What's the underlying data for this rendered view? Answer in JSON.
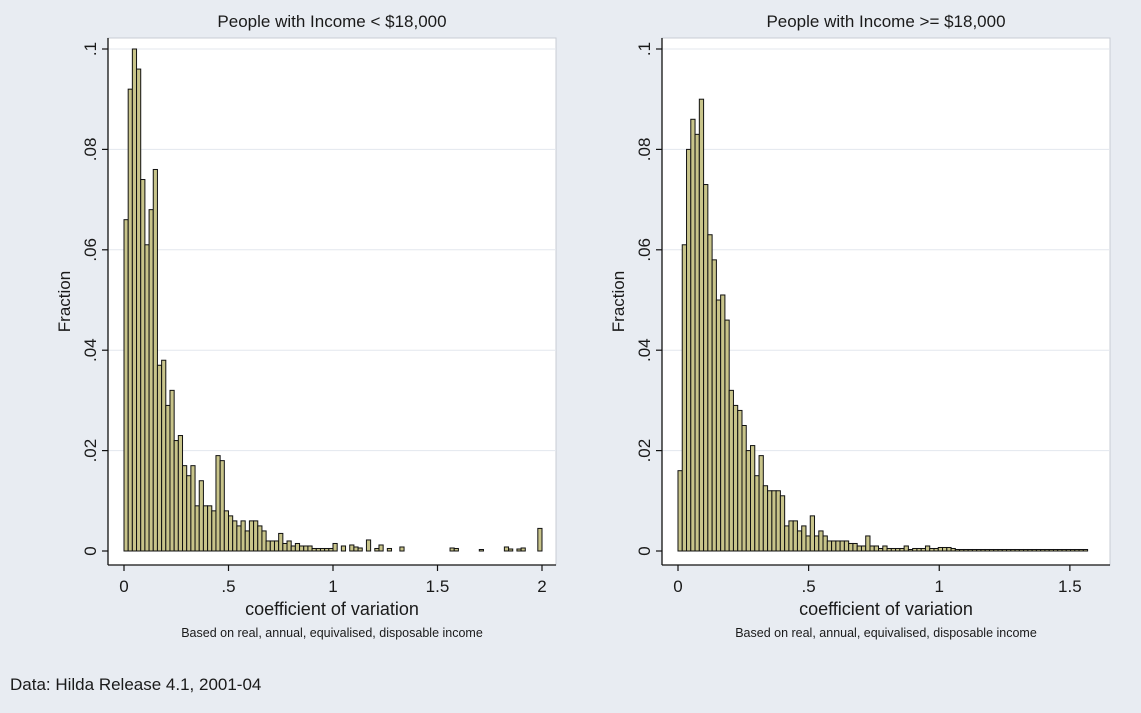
{
  "note": "Data: Hilda Release 4.1, 2001-04",
  "colors": {
    "bar_fill": "#c8c48a",
    "bar_stroke": "#111111",
    "plot_bg": "#ffffff",
    "page_bg": "#e8ecf2",
    "grid": "#e3e7ee"
  },
  "chart_data": [
    {
      "type": "bar",
      "title": "People with Income < $18,000",
      "xlabel": "coefficient of variation",
      "subtitle": "Based on real, annual, equivalised, disposable income",
      "ylabel": "Fraction",
      "xlim": [
        0,
        2
      ],
      "ylim": [
        0,
        0.1
      ],
      "xticks": [
        0,
        0.5,
        1,
        1.5,
        2
      ],
      "xtick_labels": [
        "0",
        ".5",
        "1",
        "1.5",
        "2"
      ],
      "yticks": [
        0,
        0.02,
        0.04,
        0.06,
        0.08,
        0.1
      ],
      "ytick_labels": [
        "0",
        ".02",
        ".04",
        ".06",
        ".08",
        ".1"
      ],
      "grid": true,
      "bin_width": 0.02,
      "x": [
        0.01,
        0.03,
        0.05,
        0.07,
        0.09,
        0.11,
        0.13,
        0.15,
        0.17,
        0.19,
        0.21,
        0.23,
        0.25,
        0.27,
        0.29,
        0.31,
        0.33,
        0.35,
        0.37,
        0.39,
        0.41,
        0.43,
        0.45,
        0.47,
        0.49,
        0.51,
        0.53,
        0.55,
        0.57,
        0.59,
        0.61,
        0.63,
        0.65,
        0.67,
        0.69,
        0.71,
        0.73,
        0.75,
        0.77,
        0.79,
        0.81,
        0.83,
        0.85,
        0.87,
        0.89,
        0.91,
        0.93,
        0.95,
        0.97,
        0.99,
        1.01,
        1.05,
        1.09,
        1.11,
        1.13,
        1.17,
        1.21,
        1.23,
        1.27,
        1.33,
        1.57,
        1.59,
        1.71,
        1.83,
        1.85,
        1.89,
        1.91,
        1.99
      ],
      "values": [
        0.066,
        0.092,
        0.1,
        0.096,
        0.074,
        0.061,
        0.068,
        0.076,
        0.037,
        0.038,
        0.029,
        0.032,
        0.022,
        0.023,
        0.017,
        0.015,
        0.017,
        0.009,
        0.014,
        0.009,
        0.009,
        0.008,
        0.019,
        0.018,
        0.008,
        0.007,
        0.006,
        0.005,
        0.006,
        0.004,
        0.006,
        0.006,
        0.005,
        0.004,
        0.002,
        0.002,
        0.002,
        0.0035,
        0.0015,
        0.002,
        0.001,
        0.0015,
        0.001,
        0.001,
        0.001,
        0.0005,
        0.0005,
        0.0005,
        0.0005,
        0.0005,
        0.0015,
        0.001,
        0.0012,
        0.0008,
        0.0006,
        0.0022,
        0.0005,
        0.0012,
        0.0005,
        0.0008,
        0.0006,
        0.0005,
        0.0003,
        0.0008,
        0.0004,
        0.0004,
        0.0006,
        0.0045
      ]
    },
    {
      "type": "bar",
      "title": "People with Income >= $18,000",
      "xlabel": "coefficient of variation",
      "subtitle": "Based on real, annual, equivalised, disposable income",
      "ylabel": "Fraction",
      "xlim": [
        0,
        1.6
      ],
      "ylim": [
        0,
        0.1
      ],
      "xticks": [
        0,
        0.5,
        1,
        1.5
      ],
      "xtick_labels": [
        "0",
        ".5",
        "1",
        "1.5"
      ],
      "yticks": [
        0,
        0.02,
        0.04,
        0.06,
        0.08,
        0.1
      ],
      "ytick_labels": [
        "0",
        ".02",
        ".04",
        ".06",
        ".08",
        ".1"
      ],
      "grid": true,
      "bin_width": 0.0163,
      "x": [
        0.0081,
        0.0244,
        0.0408,
        0.0571,
        0.0734,
        0.0898,
        0.1061,
        0.1224,
        0.1388,
        0.1551,
        0.1714,
        0.1878,
        0.2041,
        0.2204,
        0.2368,
        0.2531,
        0.2694,
        0.2857,
        0.3021,
        0.3184,
        0.3347,
        0.3511,
        0.3674,
        0.3837,
        0.4001,
        0.4164,
        0.4327,
        0.4491,
        0.4654,
        0.4817,
        0.4981,
        0.5144,
        0.5307,
        0.5471,
        0.5634,
        0.5797,
        0.5961,
        0.6124,
        0.6287,
        0.6451,
        0.6614,
        0.6777,
        0.6941,
        0.7104,
        0.7267,
        0.7431,
        0.7594,
        0.7757,
        0.7921,
        0.8084,
        0.8247,
        0.8411,
        0.8574,
        0.8737,
        0.8901,
        0.9064,
        0.9227,
        0.9391,
        0.9554,
        0.9717,
        0.9881,
        1.0044,
        1.0207,
        1.0371,
        1.0534,
        1.0697,
        1.0861,
        1.1024,
        1.1187,
        1.1351,
        1.1514,
        1.1677,
        1.1841,
        1.2004,
        1.2167,
        1.2331,
        1.2494,
        1.2657,
        1.2821,
        1.2984,
        1.3147,
        1.3311,
        1.3474,
        1.3637,
        1.3801,
        1.3964,
        1.4127,
        1.4291,
        1.4454,
        1.4617,
        1.4781,
        1.4944,
        1.5107,
        1.5271,
        1.5434,
        1.5597
      ],
      "values": [
        0.016,
        0.061,
        0.08,
        0.086,
        0.083,
        0.09,
        0.073,
        0.063,
        0.058,
        0.05,
        0.051,
        0.046,
        0.032,
        0.029,
        0.028,
        0.025,
        0.02,
        0.021,
        0.015,
        0.019,
        0.013,
        0.012,
        0.012,
        0.012,
        0.011,
        0.005,
        0.006,
        0.006,
        0.004,
        0.005,
        0.003,
        0.007,
        0.003,
        0.004,
        0.003,
        0.002,
        0.002,
        0.002,
        0.002,
        0.002,
        0.0015,
        0.0015,
        0.001,
        0.001,
        0.003,
        0.001,
        0.001,
        0.0005,
        0.001,
        0.0005,
        0.0005,
        0.0005,
        0.0005,
        0.001,
        0.0003,
        0.0005,
        0.0005,
        0.0005,
        0.001,
        0.0005,
        0.0005,
        0.0007,
        0.0007,
        0.0007,
        0.0005,
        0.0003,
        0.0003,
        0.0003,
        0.0003,
        0.0003,
        0.0003,
        0.0003,
        0.0003,
        0.0003,
        0.0003,
        0.0003,
        0.0003,
        0.0003,
        0.0003,
        0.0003,
        0.0003,
        0.0003,
        0.0003,
        0.0003,
        0.0003,
        0.0003,
        0.0003,
        0.0003,
        0.0003,
        0.0003,
        0.0003,
        0.0003,
        0.0003,
        0.0003,
        0.0003,
        0.0003
      ]
    }
  ]
}
